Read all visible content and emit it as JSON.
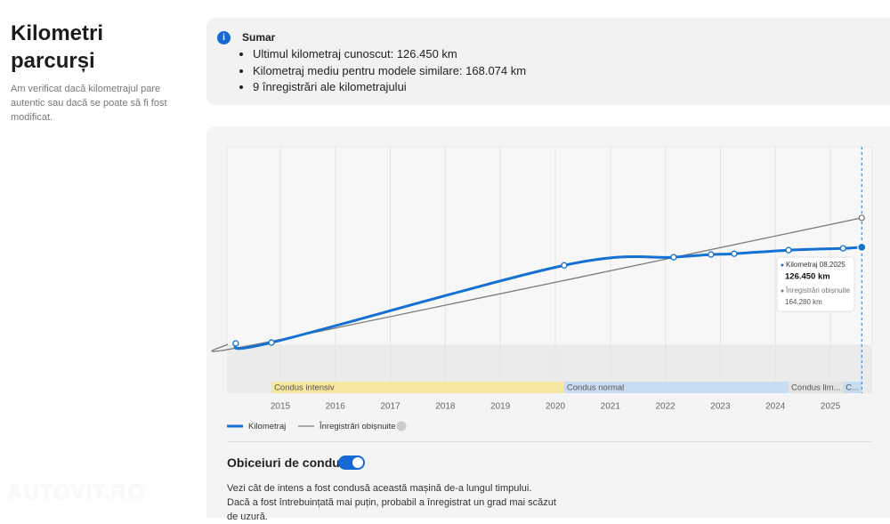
{
  "title": "Kilometri parcurși",
  "description": "Am verificat dacă kilometrajul pare autentic sau dacă se poate să fi fost modificat.",
  "summary": {
    "icon": "i",
    "heading": "Sumar",
    "items": [
      "Ultimul kilometraj cunoscut: 126.450 km",
      "Kilometraj mediu pentru modele similare: 168.074 km",
      "9 înregistrări ale kilometrajului"
    ]
  },
  "chart_data": {
    "type": "line",
    "xlim": [
      2014.03,
      2025.76
    ],
    "xticks": [
      2015,
      2016,
      2017,
      2018,
      2019,
      2020,
      2021,
      2022,
      2023,
      2024,
      2025
    ],
    "ylim": [
      0,
      256000
    ],
    "series": [
      {
        "name": "Kilometraj",
        "color": "#1470d2",
        "x": [
          2014.19,
          2014.84,
          2020.16,
          2022.15,
          2022.83,
          2023.25,
          2024.24,
          2025.23,
          2025.57
        ],
        "values": [
          2300,
          3400,
          103000,
          113500,
          117000,
          118000,
          122600,
          125000,
          126450
        ]
      },
      {
        "name": "Înregistrări obișnuite",
        "color": "#7a7a7a",
        "x": [
          2014.03,
          2014.84,
          2025.57
        ],
        "values": [
          1100,
          5000,
          164280
        ]
      }
    ],
    "periods": [
      {
        "label": "Condus intensiv",
        "start": 2014.84,
        "end": 2020.16,
        "color": "#f5e6a0"
      },
      {
        "label": "Condus normal",
        "start": 2020.16,
        "end": 2024.24,
        "color": "#c8ddf2"
      },
      {
        "label": "Condus lim...",
        "start": 2024.24,
        "end": 2025.23,
        "color": "#e3e3e3"
      },
      {
        "label": "C...",
        "start": 2025.23,
        "end": 2025.57,
        "color": "#c8ddf2"
      }
    ],
    "tooltip": {
      "title": "Kilometraj 08.2025",
      "value": "126.450 km",
      "typical_title": "Înregistrări obișnuite",
      "typical_value": "164.280 km"
    }
  },
  "habits": {
    "title": "Obiceiuri de condus",
    "text": "Vezi cât de intens a fost condusă această mașină de-a lungul timpului. Dacă a fost întrebuințată mai puțin, probabil a înregistrat un grad mai scăzut de uzură."
  },
  "watermark": "AUTOVIT.RO"
}
